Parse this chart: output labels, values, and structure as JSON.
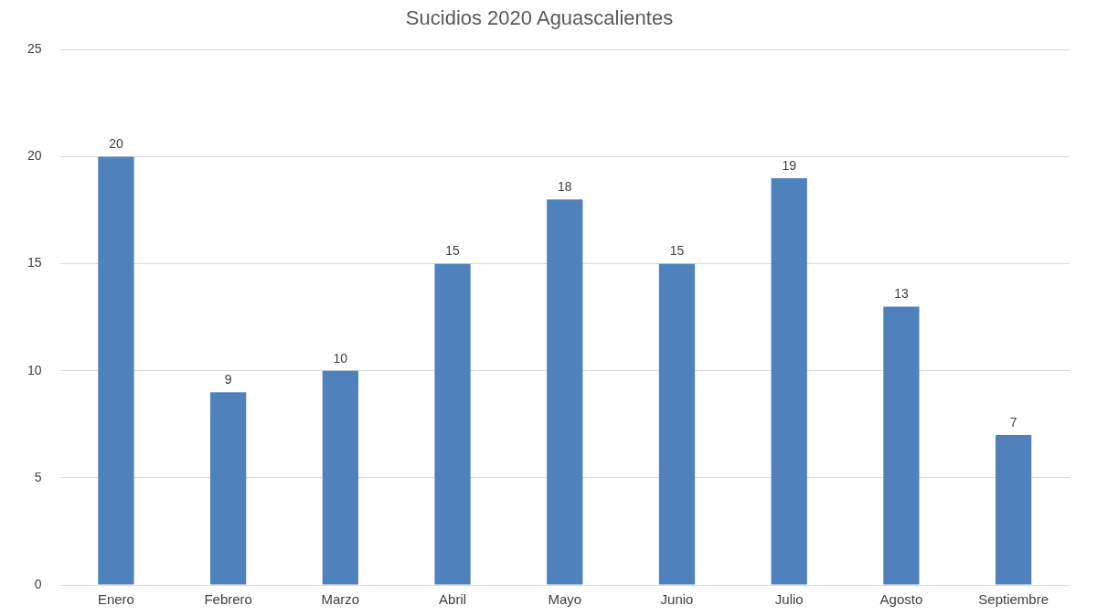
{
  "chart_data": {
    "type": "bar",
    "title": "Sucidios 2020 Aguascalientes",
    "categories": [
      "Enero",
      "Febrero",
      "Marzo",
      "Abril",
      "Mayo",
      "Junio",
      "Julio",
      "Agosto",
      "Septiembre"
    ],
    "values": [
      20,
      9,
      10,
      15,
      18,
      15,
      19,
      13,
      7
    ],
    "color": "#4f81bd",
    "ylim": [
      0,
      25
    ],
    "yticks": [
      0,
      5,
      10,
      15,
      20,
      25
    ],
    "grid": "y",
    "data_labels": true
  }
}
